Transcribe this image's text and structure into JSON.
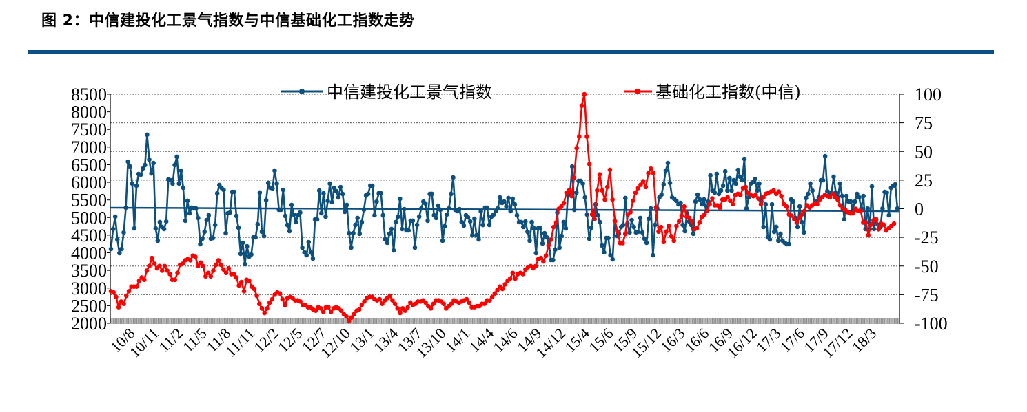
{
  "title": "图 2：中信建投化工景气指数与中信基础化工指数走势",
  "colors": {
    "rule": "#0a4f86",
    "blue_series": "#0d4f7d",
    "red_series": "#ff0000",
    "grid": "#888888"
  },
  "chart_data": {
    "type": "line",
    "title": "",
    "x_tick_labels": [
      "10/8",
      "10/11",
      "11/2",
      "11/5",
      "11/8",
      "11/11",
      "12/2",
      "12/5",
      "12/7",
      "12/10",
      "13/1",
      "13/4",
      "13/7",
      "13/10",
      "14/1",
      "14/4",
      "14/6",
      "14/9",
      "14/12",
      "15/4",
      "15/6",
      "15/9",
      "15/12",
      "16/3",
      "16/6",
      "16/9",
      "16/12",
      "17/3",
      "17/6",
      "17/9",
      "17/12",
      "18/3"
    ],
    "left_axis": {
      "range": [
        2000,
        8500
      ],
      "step": 500,
      "ticks": [
        "8500",
        "8000",
        "7500",
        "7000",
        "6500",
        "6000",
        "5500",
        "5000",
        "4500",
        "4000",
        "3500",
        "3000",
        "2500",
        "2000"
      ]
    },
    "right_axis": {
      "range": [
        -100,
        100
      ],
      "step": 25,
      "ticks": [
        "100",
        "75",
        "50",
        "25",
        "0",
        "-25",
        "-50",
        "-75",
        "-100"
      ]
    },
    "grid": "horizontal dotted at right-axis ticks",
    "legend_position": "top",
    "reference_line": {
      "axis": "left",
      "start": 5280,
      "end": 5180
    },
    "series": [
      {
        "name": "中信建投化工景气指数",
        "axis": "left",
        "color": "#0d4f7d",
        "values": [
          4108,
          4675,
          5025,
          4381,
          3991,
          4108,
          4577,
          5280,
          6587,
          6450,
          5963,
          4694,
          5904,
          6236,
          6216,
          6392,
          6490,
          7349,
          6646,
          6255,
          6548,
          4694,
          4342,
          4870,
          4733,
          4675,
          4889,
          6080,
          6060,
          5963,
          6490,
          6724,
          5963,
          6333,
          5845,
          4909,
          5475,
          5123,
          5280,
          5260,
          5260,
          4987,
          4245,
          4401,
          4596,
          4928,
          5065,
          4401,
          4420,
          4791,
          5690,
          5924,
          5845,
          5787,
          4557,
          5123,
          5143,
          5728,
          5728,
          5045,
          4713,
          3971,
          4284,
          3679,
          4186,
          3893,
          3952,
          4440,
          4440,
          4811,
          5709,
          4596,
          4479,
          5494,
          5982,
          5845,
          5826,
          6333,
          5963,
          5221,
          5221,
          5787,
          5045,
          4791,
          4616,
          5358,
          5084,
          4870,
          5065,
          5143,
          4147,
          4011,
          3932,
          4303,
          4011,
          3835,
          4948,
          4948,
          5767,
          5123,
          5690,
          5025,
          5475,
          5963,
          5436,
          5845,
          5748,
          5572,
          5865,
          5670,
          5162,
          5358,
          4557,
          4147,
          4557,
          4791,
          4987,
          4538,
          4870,
          5221,
          5631,
          5670,
          5904,
          5904,
          5065,
          5455,
          5690,
          5690,
          5065,
          4381,
          4284,
          4538,
          4675,
          4069,
          4870,
          5025,
          5533,
          4675,
          5240,
          4635,
          4635,
          4909,
          4909,
          4147,
          4791,
          5025,
          5260,
          5455,
          5397,
          4909,
          5670,
          5670,
          5065,
          4987,
          5338,
          5221,
          4342,
          4752,
          5084,
          5260,
          5670,
          6138,
          5221,
          5182,
          5240,
          4870,
          4772,
          5065,
          5006,
          4889,
          4499,
          4967,
          4499,
          4381,
          5182,
          4791,
          5280,
          5280,
          4791,
          5025,
          5084,
          5182,
          5260,
          5572,
          5416,
          5455,
          5318,
          5553,
          5182,
          5533,
          5377,
          5065,
          4870,
          4870,
          4733,
          4889,
          4596,
          4342,
          4870,
          4694,
          3991,
          4694,
          4694,
          4264,
          4557,
          4440,
          4284,
          3796,
          3796,
          4089,
          5143,
          4147,
          4479,
          4870,
          4694,
          5670,
          5709,
          6450,
          5221,
          5709,
          6041,
          6041,
          5963,
          5572,
          5084,
          4401,
          4713,
          5065,
          5377,
          5065,
          4870,
          4206,
          4011,
          4420,
          4420,
          3932,
          3815,
          4909,
          4479,
          4538,
          4733,
          4791,
          5553,
          4830,
          4577,
          4928,
          4733,
          4577,
          4596,
          4987,
          4577,
          4401,
          4284,
          4967,
          5260,
          3932,
          4791,
          5260,
          5572,
          5650,
          5943,
          6333,
          6548,
          5982,
          5572,
          5533,
          5475,
          5377,
          5416,
          4791,
          4616,
          5123,
          4889,
          4791,
          4538,
          5455,
          5650,
          5514,
          5377,
          5514,
          5182,
          5455,
          6197,
          5767,
          5709,
          6236,
          5670,
          5767,
          5904,
          6314,
          5767,
          6119,
          5767,
          6060,
          5963,
          6353,
          6158,
          6060,
          6665,
          5260,
          5572,
          5963,
          6002,
          6099,
          5767,
          5963,
          5455,
          4733,
          5377,
          4440,
          4381,
          5377,
          4596,
          4733,
          4342,
          4538,
          4342,
          4284,
          4245,
          4245,
          5514,
          5455,
          4987,
          4733,
          5318,
          4870,
          4577,
          5553,
          5670,
          5963,
          5767,
          5397,
          5455,
          5572,
          6060,
          6060,
          6743,
          5748,
          5709,
          5709,
          6158,
          5709,
          5572,
          5963,
          5611,
          4948,
          5611,
          5455,
          5455,
          5260,
          5455,
          5670,
          5572,
          5260,
          5611,
          4675,
          5260,
          4675,
          5885,
          4675,
          4928,
          4791,
          4733,
          5260,
          5728,
          5709,
          5065,
          5845,
          5904,
          5943,
          5260
        ]
      },
      {
        "name": "基础化工指数(中信)",
        "axis": "right",
        "color": "#ff0000",
        "values": [
          -72,
          -73,
          -77,
          -86,
          -81,
          -83,
          -76,
          -72,
          -68,
          -68,
          -68,
          -63,
          -60,
          -62,
          -54,
          -50,
          -43,
          -48,
          -52,
          -50,
          -54,
          -50,
          -54,
          -57,
          -62,
          -62,
          -56,
          -49,
          -48,
          -45,
          -44,
          -45,
          -41,
          -42,
          -50,
          -47,
          -50,
          -59,
          -56,
          -59,
          -54,
          -49,
          -45,
          -49,
          -53,
          -56,
          -52,
          -57,
          -57,
          -60,
          -67,
          -64,
          -72,
          -62,
          -63,
          -68,
          -70,
          -76,
          -83,
          -87,
          -91,
          -87,
          -82,
          -79,
          -75,
          -73,
          -74,
          -79,
          -84,
          -78,
          -77,
          -78,
          -80,
          -80,
          -81,
          -84,
          -84,
          -86,
          -86,
          -88,
          -89,
          -86,
          -87,
          -90,
          -86,
          -86,
          -90,
          -87,
          -86,
          -87,
          -89,
          -92,
          -94,
          -98,
          -95,
          -92,
          -89,
          -88,
          -84,
          -81,
          -78,
          -77,
          -77,
          -79,
          -80,
          -79,
          -83,
          -80,
          -78,
          -76,
          -80,
          -83,
          -87,
          -91,
          -87,
          -89,
          -86,
          -82,
          -84,
          -83,
          -81,
          -81,
          -80,
          -82,
          -85,
          -87,
          -83,
          -80,
          -80,
          -81,
          -83,
          -87,
          -85,
          -83,
          -80,
          -81,
          -82,
          -81,
          -80,
          -79,
          -82,
          -86,
          -86,
          -85,
          -85,
          -83,
          -83,
          -80,
          -80,
          -77,
          -74,
          -71,
          -68,
          -70,
          -66,
          -63,
          -61,
          -56,
          -61,
          -57,
          -56,
          -57,
          -53,
          -51,
          -50,
          -52,
          -50,
          -44,
          -43,
          -46,
          -41,
          -32,
          -27,
          -16,
          -12,
          0,
          2,
          5,
          14,
          16,
          11,
          27,
          53,
          63,
          90,
          100,
          63,
          39,
          -5,
          -9,
          16,
          30,
          16,
          8,
          19,
          34,
          8,
          -11,
          -20,
          -30,
          -30,
          -22,
          -5,
          -3,
          7,
          14,
          18,
          21,
          24,
          19,
          31,
          35,
          31,
          1,
          -20,
          -16,
          -29,
          -20,
          -15,
          -24,
          -28,
          -15,
          -11,
          -6,
          2,
          -7,
          -8,
          -11,
          -18,
          -17,
          -12,
          -7,
          -5,
          -2,
          4,
          9,
          3,
          3,
          1,
          8,
          8,
          10,
          7,
          4,
          12,
          13,
          12,
          18,
          19,
          14,
          12,
          11,
          12,
          9,
          4,
          10,
          13,
          14,
          15,
          16,
          13,
          15,
          11,
          4,
          2,
          -5,
          -6,
          -9,
          -12,
          -8,
          -5,
          -2,
          3,
          1,
          3,
          5,
          4,
          8,
          10,
          12,
          11,
          10,
          13,
          10,
          8,
          3,
          0,
          -1,
          -3,
          -4,
          -4,
          0,
          -2,
          -2,
          -12,
          -12,
          -23,
          -14,
          -10,
          -9,
          -18,
          -13,
          -14,
          -19,
          -17,
          -15,
          -13
        ]
      }
    ]
  }
}
